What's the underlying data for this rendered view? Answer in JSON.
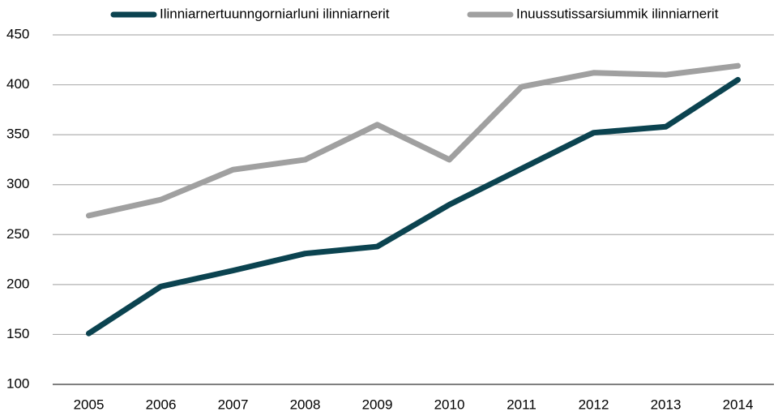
{
  "chart_data": {
    "type": "line",
    "categories": [
      "2005",
      "2006",
      "2007",
      "2008",
      "2009",
      "2010",
      "2011",
      "2012",
      "2013",
      "2014"
    ],
    "series": [
      {
        "name": "Ilinniarnertuunngorniarluni ilinniarnerit",
        "color": "#0b4350",
        "values": [
          151,
          198,
          214,
          231,
          238,
          280,
          316,
          352,
          358,
          405
        ]
      },
      {
        "name": "Inuussutissarsiummik ilinniarnerit",
        "color": "#a0a0a0",
        "values": [
          269,
          285,
          315,
          325,
          360,
          325,
          398,
          412,
          410,
          419
        ]
      }
    ],
    "ylim": [
      100,
      450
    ],
    "yticks": [
      100,
      150,
      200,
      250,
      300,
      350,
      400,
      450
    ],
    "grid": true,
    "legend": "top"
  }
}
